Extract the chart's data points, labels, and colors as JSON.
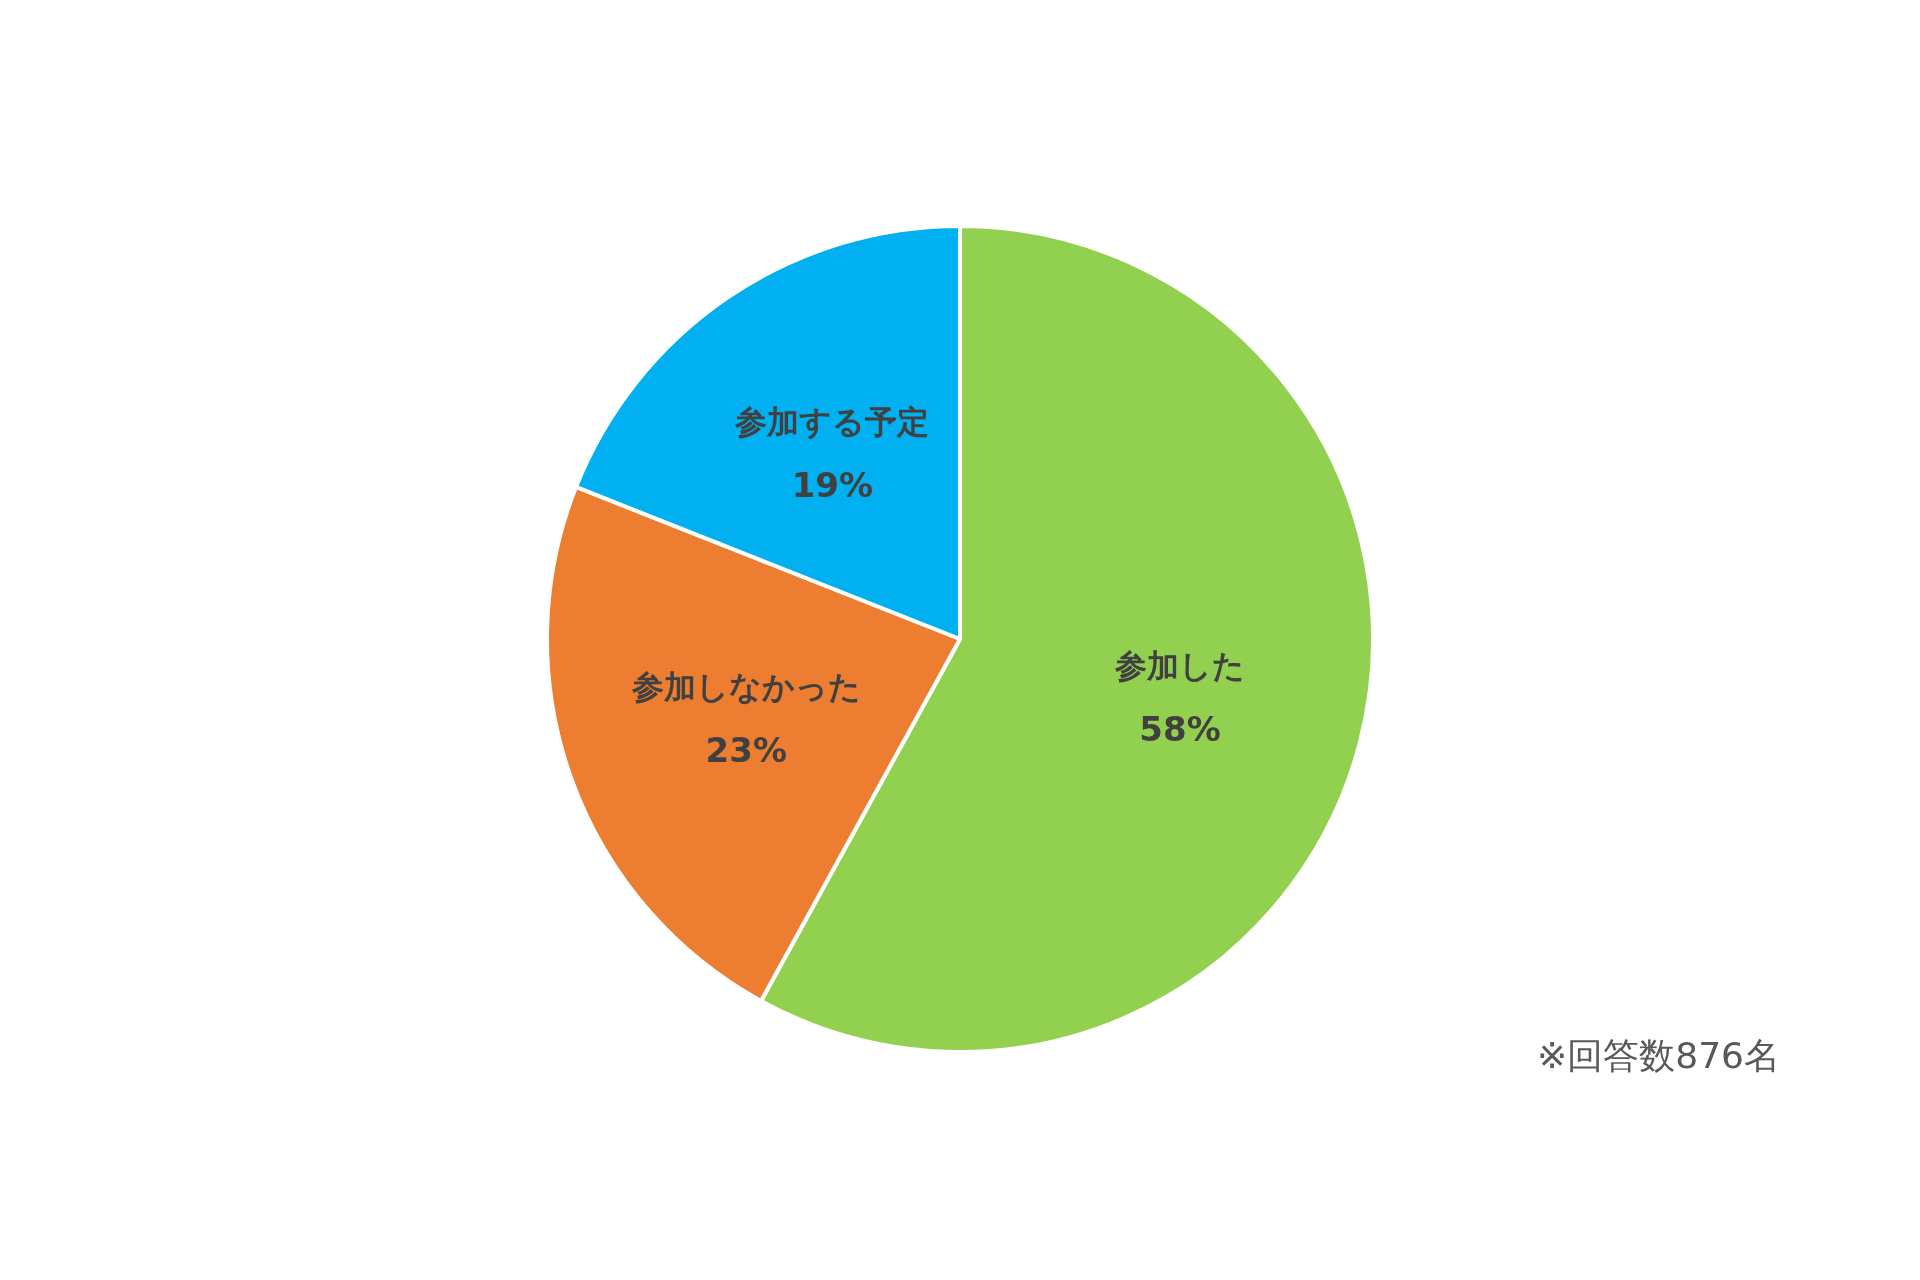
{
  "chart_data": {
    "type": "pie",
    "categories": [
      "参加した",
      "参加しなかった",
      "参加する予定"
    ],
    "values": [
      58,
      23,
      19
    ],
    "value_labels": [
      "58%",
      "23%",
      "19%"
    ],
    "colors": [
      "#92d050",
      "#ed7d31",
      "#00b0f0"
    ],
    "annotations": [
      "※回答数876名"
    ]
  }
}
